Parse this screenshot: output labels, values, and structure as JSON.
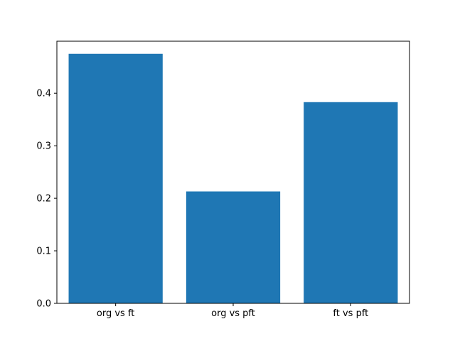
{
  "chart_data": {
    "type": "bar",
    "categories": [
      "org vs ft",
      "org vs pft",
      "ft vs pft"
    ],
    "values": [
      0.475,
      0.213,
      0.383
    ],
    "title": "",
    "xlabel": "",
    "ylabel": "",
    "ylim": [
      0.0,
      0.499
    ],
    "yticks": [
      0.0,
      0.1,
      0.2,
      0.3,
      0.4
    ],
    "ytick_labels": [
      "0.0",
      "0.1",
      "0.2",
      "0.3",
      "0.4"
    ],
    "bar_color": "#1f77b4",
    "background_color": "#ffffff",
    "spine_color": "#000000",
    "bar_width_fraction": 0.8,
    "grid": false,
    "legend": null
  }
}
